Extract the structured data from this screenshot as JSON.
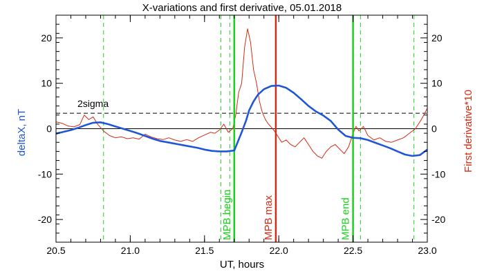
{
  "chart_data": {
    "type": "line",
    "title": "X-variations and first derivative, 05.01.2018",
    "xlabel": "UT, hours",
    "ylabel_left": "deltaX, nT",
    "ylabel_right": "First derivative*10",
    "xlim": [
      20.5,
      23.0
    ],
    "ylim": [
      -25,
      25
    ],
    "x_ticks": [
      20.5,
      21.0,
      21.5,
      22.0,
      22.5,
      23.0
    ],
    "x_tick_labels": [
      "20.5",
      "21.0",
      "21.5",
      "22.0",
      "22.5",
      "23.0"
    ],
    "y_ticks": [
      -20,
      -10,
      0,
      10,
      20
    ],
    "y_tick_labels": [
      "-20",
      "-10",
      "0",
      "10",
      "20"
    ],
    "colors": {
      "deltaX": "#1f56d6",
      "derivative": "#d42a12",
      "markers": "#18d418",
      "max_marker": "#d42a12",
      "dashed_markers": "#18d418",
      "axis_right_label": "#d42a12",
      "axis_left_label": "#1f56d6"
    },
    "sigma_level": 3.4,
    "sigma_label": "2sigma",
    "zero_line": 0,
    "dashed_vlines": [
      20.82,
      21.61,
      21.67,
      22.55,
      22.91
    ],
    "markers": [
      {
        "label": "MPB begin",
        "x": 21.7,
        "color": "#18d418"
      },
      {
        "label": "MPB max",
        "x": 21.98,
        "color": "#d42a12"
      },
      {
        "label": "MPB end",
        "x": 22.5,
        "color": "#18d418"
      }
    ],
    "series": [
      {
        "name": "deltaX",
        "axis": "left",
        "x": [
          20.5,
          20.55,
          20.6,
          20.65,
          20.7,
          20.75,
          20.8,
          20.85,
          20.9,
          20.95,
          21.0,
          21.05,
          21.1,
          21.15,
          21.2,
          21.25,
          21.3,
          21.35,
          21.4,
          21.45,
          21.5,
          21.55,
          21.6,
          21.65,
          21.7,
          21.72,
          21.75,
          21.78,
          21.8,
          21.83,
          21.86,
          21.9,
          21.95,
          22.0,
          22.05,
          22.1,
          22.15,
          22.2,
          22.25,
          22.3,
          22.35,
          22.4,
          22.45,
          22.5,
          22.55,
          22.6,
          22.65,
          22.7,
          22.75,
          22.8,
          22.85,
          22.9,
          22.95,
          23.0
        ],
        "values": [
          -1.1,
          -0.7,
          -0.3,
          0.2,
          0.8,
          1.3,
          1.4,
          1.0,
          0.5,
          0.0,
          -0.5,
          -1.0,
          -1.6,
          -2.2,
          -2.7,
          -3.0,
          -3.3,
          -3.6,
          -3.9,
          -4.2,
          -4.6,
          -4.9,
          -5.0,
          -5.0,
          -4.8,
          -3.2,
          -0.8,
          1.8,
          4.0,
          6.0,
          7.5,
          8.7,
          9.4,
          9.5,
          9.0,
          7.9,
          6.5,
          5.0,
          3.8,
          2.9,
          1.7,
          -0.2,
          -1.6,
          -2.0,
          -2.1,
          -2.5,
          -3.1,
          -3.7,
          -4.3,
          -5.0,
          -5.7,
          -6.0,
          -5.8,
          -4.6
        ]
      },
      {
        "name": "First derivative*10",
        "axis": "right",
        "x": [
          20.5,
          20.54,
          20.58,
          20.62,
          20.66,
          20.69,
          20.72,
          20.75,
          20.78,
          20.82,
          20.86,
          20.9,
          20.94,
          20.98,
          21.02,
          21.06,
          21.1,
          21.14,
          21.18,
          21.22,
          21.26,
          21.3,
          21.34,
          21.38,
          21.42,
          21.46,
          21.5,
          21.54,
          21.57,
          21.6,
          21.63,
          21.66,
          21.69,
          21.71,
          21.73,
          21.75,
          21.77,
          21.79,
          21.81,
          21.83,
          21.85,
          21.87,
          21.89,
          21.91,
          21.93,
          21.95,
          21.97,
          21.99,
          22.02,
          22.05,
          22.08,
          22.11,
          22.14,
          22.17,
          22.2,
          22.23,
          22.26,
          22.29,
          22.32,
          22.35,
          22.38,
          22.41,
          22.44,
          22.47,
          22.5,
          22.52,
          22.54,
          22.57,
          22.6,
          22.64,
          22.68,
          22.72,
          22.76,
          22.8,
          22.84,
          22.88,
          22.92,
          22.96,
          23.0
        ],
        "values": [
          1.5,
          1.2,
          0.6,
          0.4,
          0.9,
          3.0,
          2.0,
          2.6,
          1.0,
          -0.5,
          -1.5,
          -2.0,
          -1.8,
          -2.2,
          -2.0,
          -2.3,
          -1.2,
          -1.8,
          -2.2,
          -2.4,
          -2.0,
          -2.5,
          -2.8,
          -2.4,
          -2.8,
          -2.0,
          -1.4,
          -0.8,
          -1.0,
          -0.3,
          1.0,
          -0.8,
          0.0,
          3.0,
          8.0,
          10.0,
          18.0,
          22.0,
          19.0,
          13.0,
          10.0,
          6.0,
          3.5,
          2.0,
          1.0,
          0.3,
          -0.5,
          -1.5,
          -3.0,
          -2.5,
          -3.5,
          -4.0,
          -3.0,
          -2.0,
          -3.5,
          -5.0,
          -6.0,
          -6.5,
          -5.0,
          -4.0,
          -3.5,
          -4.5,
          -5.5,
          -4.0,
          -1.0,
          0.5,
          -0.5,
          0.5,
          -1.5,
          -2.5,
          -2.0,
          -2.8,
          -3.0,
          -2.5,
          -2.0,
          -1.0,
          0.0,
          2.0,
          4.5
        ]
      }
    ]
  }
}
